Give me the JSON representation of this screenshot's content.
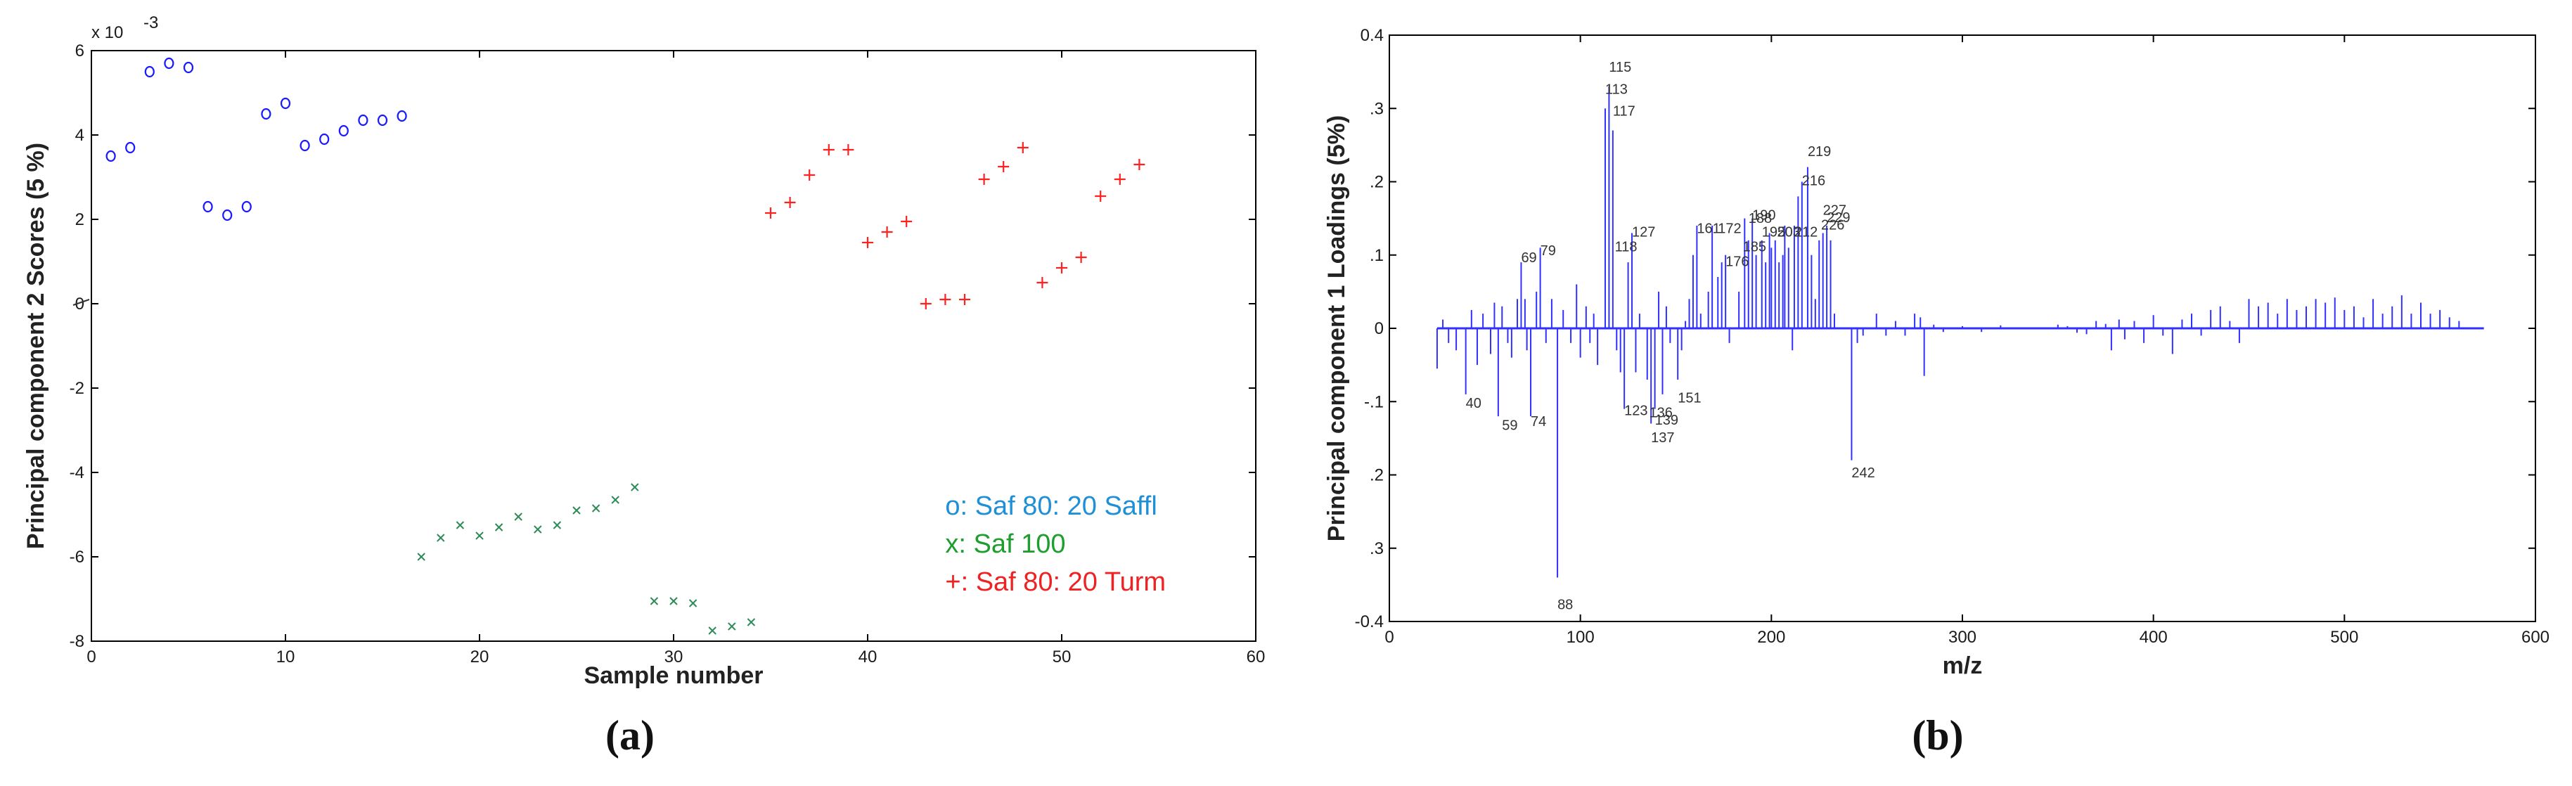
{
  "chart_data": [
    {
      "type": "scatter",
      "panel_label": "(a)",
      "xlabel": "Sample number",
      "ylabel": "Principal component 2 Scores (5 %)",
      "exponent_label": "x 10",
      "exponent_power": "-3",
      "xlim": [
        0,
        60
      ],
      "ylim": [
        -8,
        6
      ],
      "xticks": [
        "0",
        "10",
        "20",
        "30",
        "40",
        "50",
        "60"
      ],
      "yticks": [
        "-8",
        "-6",
        "-4",
        "-2",
        "0",
        "2",
        "4",
        "6"
      ],
      "grid": false,
      "legend_position": "bottom-right",
      "series": [
        {
          "name": "o: Saf 80: 20 Saffl",
          "marker": "o",
          "color": "#1a1aff",
          "legend_color": "#1f8fd6",
          "x": [
            1,
            2,
            3,
            4,
            5,
            6,
            7,
            8,
            9,
            10,
            11,
            12,
            13,
            14,
            15,
            16
          ],
          "y": [
            3.5,
            3.7,
            5.5,
            5.7,
            5.6,
            2.3,
            2.1,
            2.3,
            4.5,
            4.75,
            3.75,
            3.9,
            4.1,
            4.35,
            4.35,
            4.45
          ]
        },
        {
          "name": "x: Saf 100",
          "marker": "x",
          "color": "#2e8b57",
          "legend_color": "#1e9e2e",
          "x": [
            17,
            18,
            19,
            20,
            21,
            22,
            23,
            24,
            25,
            26,
            27,
            28,
            29,
            30,
            31,
            32,
            33,
            34
          ],
          "y": [
            -6.0,
            -5.55,
            -5.25,
            -5.5,
            -5.3,
            -5.05,
            -5.35,
            -5.25,
            -4.9,
            -4.85,
            -4.65,
            -4.35,
            -7.05,
            -7.05,
            -7.1,
            -7.75,
            -7.65,
            -7.55
          ]
        },
        {
          "name": "+: Saf 80: 20 Turm",
          "marker": "+",
          "color": "#ff2020",
          "legend_color": "#ee2222",
          "x": [
            35,
            36,
            37,
            38,
            39,
            40,
            41,
            42,
            43,
            44,
            45,
            46,
            47,
            48,
            49,
            50,
            51,
            52,
            53,
            54
          ],
          "y": [
            2.15,
            2.4,
            3.05,
            3.65,
            3.65,
            1.45,
            1.7,
            1.95,
            0.0,
            0.1,
            0.1,
            2.95,
            3.25,
            3.7,
            0.5,
            0.85,
            1.1,
            2.55,
            2.95,
            3.3
          ]
        }
      ]
    },
    {
      "type": "bar",
      "panel_label": "(b)",
      "xlabel": "m/z",
      "ylabel": "Principal component 1 Loadings (5%)",
      "xlim": [
        0,
        600
      ],
      "ylim": [
        -0.4,
        0.4
      ],
      "xticks": [
        "0",
        "100",
        "200",
        "300",
        "400",
        "500",
        "600"
      ],
      "yticks": [
        "0.4",
        ".3",
        ".2",
        ".1",
        "0",
        "-.1",
        ".2",
        ".3",
        "-0.4"
      ],
      "grid": false,
      "color": "#3030ff",
      "series": [
        {
          "name": "",
          "x": [
            25,
            28,
            31,
            35,
            40,
            43,
            46,
            49,
            53,
            55,
            57,
            59,
            62,
            64,
            67,
            69,
            71,
            72,
            74,
            77,
            79,
            82,
            85,
            88,
            91,
            95,
            98,
            100,
            103,
            105,
            107,
            109,
            113,
            115,
            117,
            119,
            121,
            123,
            125,
            127,
            129,
            131,
            135,
            137,
            139,
            141,
            143,
            145,
            147,
            151,
            153,
            155,
            157,
            159,
            161,
            163,
            167,
            169,
            172,
            174,
            176,
            178,
            183,
            186,
            188,
            190,
            192,
            195,
            197,
            199,
            200,
            202,
            204,
            206,
            207,
            209,
            211,
            212,
            214,
            216,
            219,
            221,
            223,
            225,
            227,
            229,
            231,
            233,
            242,
            245,
            248,
            255,
            260,
            265,
            270,
            275,
            278,
            280,
            285,
            290,
            300,
            310,
            320,
            350,
            355,
            360,
            365,
            370,
            375,
            378,
            382,
            385,
            390,
            395,
            400,
            405,
            410,
            415,
            420,
            425,
            430,
            435,
            440,
            445,
            450,
            455,
            460,
            465,
            470,
            475,
            480,
            485,
            490,
            495,
            500,
            505,
            510,
            515,
            520,
            525,
            530,
            535,
            540,
            545,
            550,
            555,
            560
          ],
          "values": [
            -0.055,
            0.012,
            -0.02,
            -0.03,
            -0.09,
            0.025,
            -0.05,
            0.02,
            -0.035,
            0.035,
            -0.12,
            0.03,
            -0.02,
            -0.04,
            0.04,
            0.09,
            0.04,
            -0.03,
            -0.12,
            0.05,
            0.11,
            -0.02,
            0.04,
            -0.34,
            0.025,
            -0.02,
            0.06,
            -0.04,
            0.03,
            -0.02,
            0.02,
            -0.05,
            0.3,
            0.33,
            0.27,
            -0.03,
            -0.06,
            -0.11,
            0.09,
            0.13,
            -0.06,
            0.02,
            -0.07,
            -0.13,
            -0.11,
            0.05,
            -0.09,
            0.03,
            -0.02,
            -0.07,
            -0.03,
            0.01,
            0.04,
            0.1,
            0.14,
            0.02,
            0.05,
            0.14,
            0.07,
            0.09,
            0.1,
            -0.02,
            0.05,
            0.15,
            0.12,
            0.15,
            0.1,
            0.12,
            0.09,
            0.13,
            0.11,
            0.12,
            0.09,
            0.1,
            0.14,
            0.11,
            -0.03,
            0.14,
            0.18,
            0.2,
            0.22,
            0.1,
            0.04,
            0.12,
            0.13,
            0.14,
            0.12,
            0.02,
            -0.18,
            -0.02,
            -0.01,
            0.02,
            -0.01,
            0.01,
            -0.01,
            0.02,
            0.015,
            -0.065,
            0.005,
            -0.005,
            0.003,
            -0.005,
            0.004,
            0.005,
            0.003,
            -0.006,
            -0.008,
            0.01,
            0.006,
            -0.03,
            0.012,
            -0.015,
            0.01,
            -0.02,
            0.018,
            -0.01,
            -0.035,
            0.012,
            0.02,
            -0.01,
            0.025,
            0.03,
            0.01,
            -0.02,
            0.04,
            0.03,
            0.035,
            0.02,
            0.04,
            0.025,
            0.03,
            0.04,
            0.035,
            0.042,
            0.025,
            0.03,
            0.015,
            0.04,
            0.02,
            0.03,
            0.045,
            0.02,
            0.035,
            0.02,
            0.025,
            0.015,
            0.01
          ]
        }
      ],
      "annotations": [
        {
          "text": "115",
          "x": 115,
          "y": 0.35
        },
        {
          "text": "113",
          "x": 113,
          "y": 0.32
        },
        {
          "text": "117",
          "x": 117,
          "y": 0.29
        },
        {
          "text": "219",
          "x": 219,
          "y": 0.235
        },
        {
          "text": "216",
          "x": 216,
          "y": 0.195
        },
        {
          "text": "227",
          "x": 227,
          "y": 0.155
        },
        {
          "text": "229",
          "x": 229,
          "y": 0.145
        },
        {
          "text": "226",
          "x": 226,
          "y": 0.135
        },
        {
          "text": "127",
          "x": 127,
          "y": 0.125
        },
        {
          "text": "118",
          "x": 118,
          "y": 0.105
        },
        {
          "text": "161",
          "x": 161,
          "y": 0.13
        },
        {
          "text": "172",
          "x": 172,
          "y": 0.13
        },
        {
          "text": "190",
          "x": 190,
          "y": 0.148
        },
        {
          "text": "188",
          "x": 188,
          "y": 0.144
        },
        {
          "text": "176",
          "x": 176,
          "y": 0.085
        },
        {
          "text": "185",
          "x": 185,
          "y": 0.105
        },
        {
          "text": "195",
          "x": 195,
          "y": 0.125
        },
        {
          "text": "212",
          "x": 212,
          "y": 0.125
        },
        {
          "text": "203",
          "x": 203,
          "y": 0.125
        },
        {
          "text": "79",
          "x": 79,
          "y": 0.1
        },
        {
          "text": "69",
          "x": 69,
          "y": 0.09
        },
        {
          "text": "40",
          "x": 40,
          "y": -0.095
        },
        {
          "text": "59",
          "x": 59,
          "y": -0.125
        },
        {
          "text": "74",
          "x": 74,
          "y": -0.12
        },
        {
          "text": "88",
          "x": 88,
          "y": -0.37
        },
        {
          "text": "123",
          "x": 123,
          "y": -0.105
        },
        {
          "text": "136",
          "x": 136,
          "y": -0.108
        },
        {
          "text": "139",
          "x": 139,
          "y": -0.118
        },
        {
          "text": "137",
          "x": 137,
          "y": -0.142
        },
        {
          "text": "151",
          "x": 151,
          "y": -0.088
        },
        {
          "text": "242",
          "x": 242,
          "y": -0.19
        }
      ]
    }
  ]
}
